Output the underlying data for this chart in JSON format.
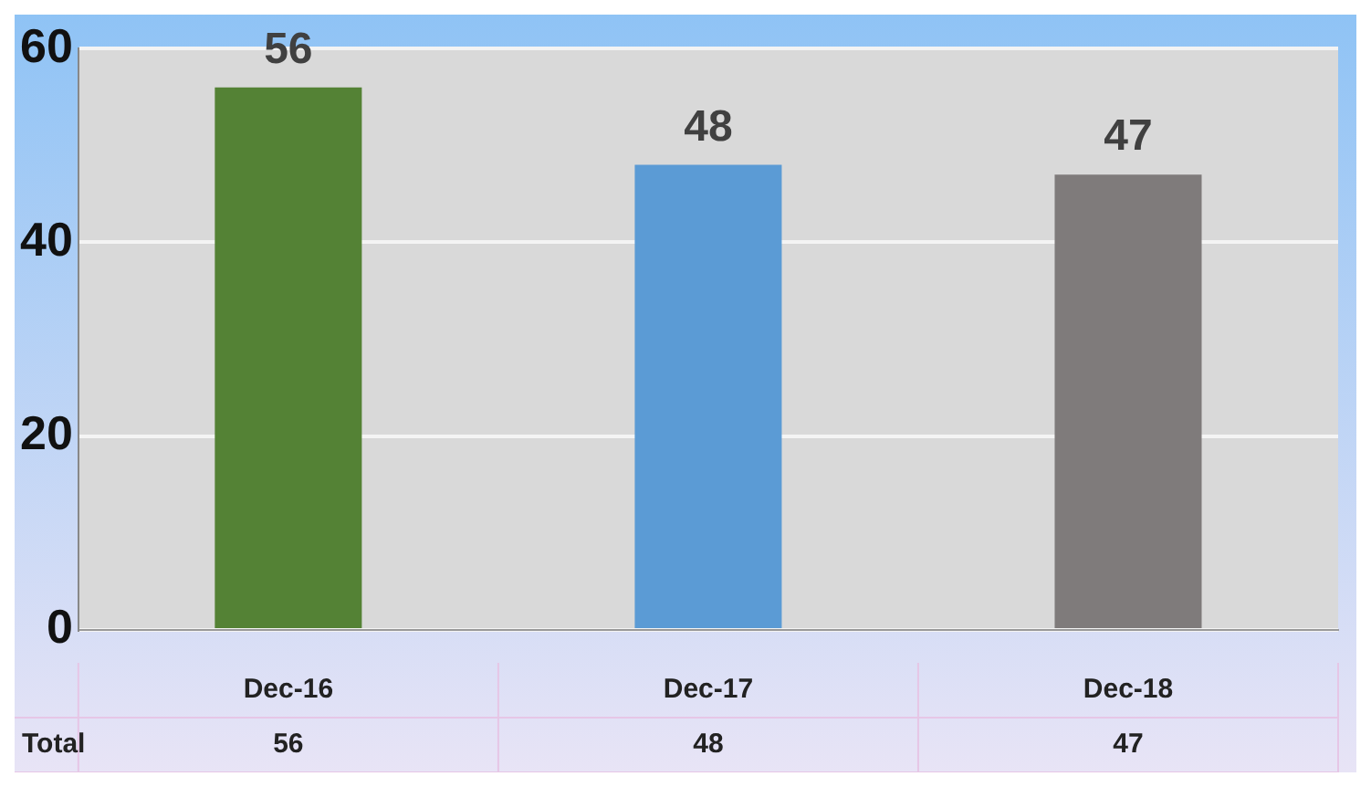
{
  "chart_data": {
    "type": "bar",
    "categories": [
      "Dec-16",
      "Dec-17",
      "Dec-18"
    ],
    "series": [
      {
        "name": "Total",
        "values": [
          56,
          48,
          47
        ],
        "colors": [
          "#548235",
          "#5b9bd5",
          "#7f7b7b"
        ]
      }
    ],
    "ylim": [
      0,
      60
    ],
    "yticks": [
      0,
      20,
      40,
      60
    ],
    "grid": "y",
    "legend": false,
    "data_labels": true,
    "annotations": [
      "56",
      "48",
      "47"
    ]
  }
}
